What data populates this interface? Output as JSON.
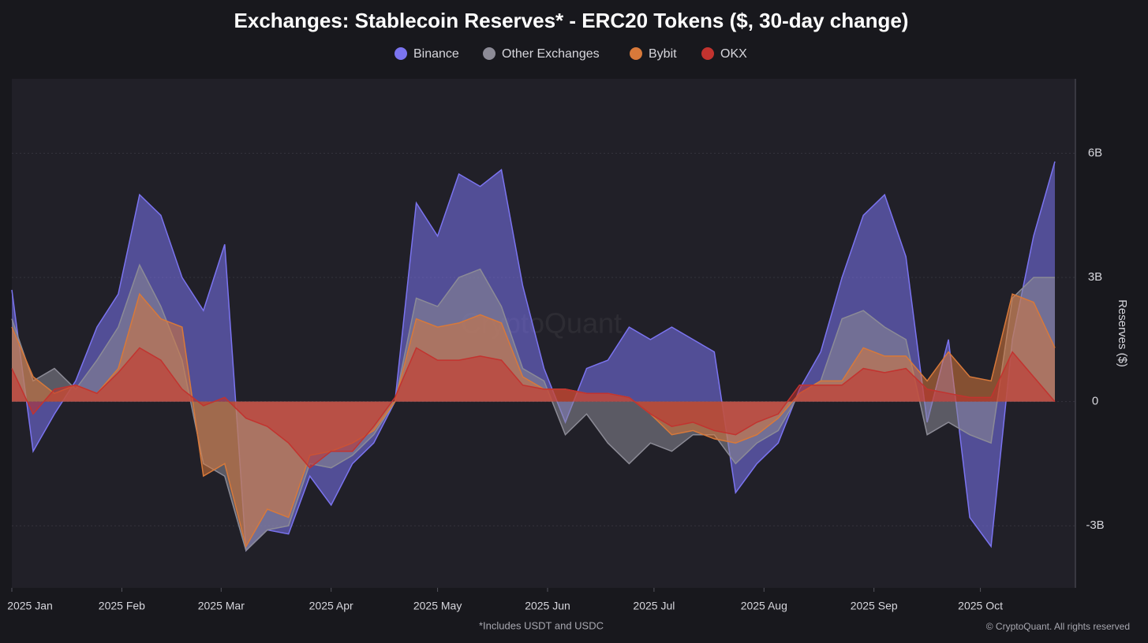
{
  "chart_data": {
    "type": "area",
    "title": "Exchanges: Stablecoin Reserves* - ERC20 Tokens ($, 30-day change)",
    "y_label": "Reserves ($)",
    "footnote": "*Includes USDT and USDC",
    "copyright": "© CryptoQuant. All rights reserved",
    "watermark": "CryptoQuant",
    "legend": "top",
    "grid": true,
    "xlim": [
      "2025-01-01",
      "2025-10-26"
    ],
    "xticks": [
      {
        "value": "2025-01-01",
        "label": "2025 Jan"
      },
      {
        "value": "2025-02-01",
        "label": "2025 Feb"
      },
      {
        "value": "2025-03-01",
        "label": "2025 Mar"
      },
      {
        "value": "2025-04-01",
        "label": "2025 Apr"
      },
      {
        "value": "2025-05-01",
        "label": "2025 May"
      },
      {
        "value": "2025-06-01",
        "label": "2025 Jun"
      },
      {
        "value": "2025-07-01",
        "label": "2025 Jul"
      },
      {
        "value": "2025-08-01",
        "label": "2025 Aug"
      },
      {
        "value": "2025-09-01",
        "label": "2025 Sep"
      },
      {
        "value": "2025-10-01",
        "label": "2025 Oct"
      }
    ],
    "ylim": [
      -4.5,
      7.8
    ],
    "yticks": [
      {
        "value": -3,
        "label": "-3B"
      },
      0,
      {
        "value": 3,
        "label": "3B"
      },
      {
        "value": 6,
        "label": "6B"
      }
    ],
    "x": [
      "2025-01-01",
      "2025-01-07",
      "2025-01-13",
      "2025-01-19",
      "2025-01-25",
      "2025-01-31",
      "2025-02-06",
      "2025-02-12",
      "2025-02-18",
      "2025-02-24",
      "2025-03-02",
      "2025-03-08",
      "2025-03-14",
      "2025-03-20",
      "2025-03-26",
      "2025-04-01",
      "2025-04-07",
      "2025-04-13",
      "2025-04-19",
      "2025-04-25",
      "2025-05-01",
      "2025-05-07",
      "2025-05-13",
      "2025-05-19",
      "2025-05-25",
      "2025-05-31",
      "2025-06-06",
      "2025-06-12",
      "2025-06-18",
      "2025-06-24",
      "2025-06-30",
      "2025-07-06",
      "2025-07-12",
      "2025-07-18",
      "2025-07-24",
      "2025-07-30",
      "2025-08-05",
      "2025-08-11",
      "2025-08-17",
      "2025-08-23",
      "2025-08-29",
      "2025-09-04",
      "2025-09-10",
      "2025-09-16",
      "2025-09-22",
      "2025-09-28",
      "2025-10-04",
      "2025-10-10",
      "2025-10-16",
      "2025-10-22"
    ],
    "series": [
      {
        "name": "Binance",
        "color": "#7b74f0",
        "values": [
          2.7,
          -1.2,
          -0.3,
          0.5,
          1.8,
          2.6,
          5.0,
          4.5,
          3.0,
          2.2,
          3.8,
          -3.6,
          -3.1,
          -3.2,
          -1.8,
          -2.5,
          -1.5,
          -1.0,
          0.0,
          4.8,
          4.0,
          5.5,
          5.2,
          5.6,
          2.8,
          0.8,
          -0.5,
          0.8,
          1.0,
          1.8,
          1.5,
          1.8,
          1.5,
          1.2,
          -2.2,
          -1.5,
          -1.0,
          0.3,
          1.2,
          3.0,
          4.5,
          5.0,
          3.5,
          -0.5,
          1.5,
          -2.8,
          -3.5,
          1.5,
          4.0,
          5.8
        ]
      },
      {
        "name": "Other Exchanges",
        "color": "#8c8b96",
        "values": [
          2.0,
          0.5,
          0.8,
          0.3,
          1.0,
          1.8,
          3.3,
          2.3,
          1.0,
          -1.5,
          -1.8,
          -3.6,
          -3.1,
          -3.0,
          -1.5,
          -1.6,
          -1.3,
          -0.8,
          0.0,
          2.5,
          2.3,
          3.0,
          3.2,
          2.3,
          0.8,
          0.5,
          -0.8,
          -0.3,
          -1.0,
          -1.5,
          -1.0,
          -1.2,
          -0.8,
          -0.8,
          -1.5,
          -1.0,
          -0.7,
          0.2,
          0.5,
          2.0,
          2.2,
          1.8,
          1.5,
          -0.8,
          -0.5,
          -0.8,
          -1.0,
          2.5,
          3.0,
          3.0
        ]
      },
      {
        "name": "Bybit",
        "color": "#d8793a",
        "values": [
          1.8,
          0.6,
          0.2,
          0.4,
          0.2,
          0.8,
          2.6,
          2.0,
          1.8,
          -1.8,
          -1.5,
          -3.5,
          -2.6,
          -2.8,
          -1.3,
          -1.2,
          -1.0,
          -0.7,
          0.0,
          2.0,
          1.8,
          1.9,
          2.1,
          1.9,
          0.6,
          0.3,
          0.3,
          0.2,
          0.2,
          0.1,
          -0.3,
          -0.8,
          -0.7,
          -0.9,
          -1.0,
          -0.8,
          -0.4,
          0.2,
          0.5,
          0.5,
          1.3,
          1.1,
          1.1,
          0.5,
          1.2,
          0.6,
          0.5,
          2.6,
          2.4,
          1.3
        ]
      },
      {
        "name": "OKX",
        "color": "#c2332f",
        "values": [
          0.8,
          -0.3,
          0.3,
          0.4,
          0.2,
          0.7,
          1.3,
          1.0,
          0.3,
          -0.1,
          0.1,
          -0.4,
          -0.6,
          -1.0,
          -1.6,
          -1.2,
          -1.2,
          -0.6,
          0.1,
          1.3,
          1.0,
          1.0,
          1.1,
          1.0,
          0.4,
          0.3,
          0.3,
          0.2,
          0.2,
          0.1,
          -0.3,
          -0.6,
          -0.5,
          -0.7,
          -0.8,
          -0.5,
          -0.3,
          0.4,
          0.4,
          0.4,
          0.8,
          0.7,
          0.8,
          0.3,
          0.2,
          0.1,
          0.1,
          1.2,
          0.6,
          0.0
        ]
      }
    ]
  }
}
